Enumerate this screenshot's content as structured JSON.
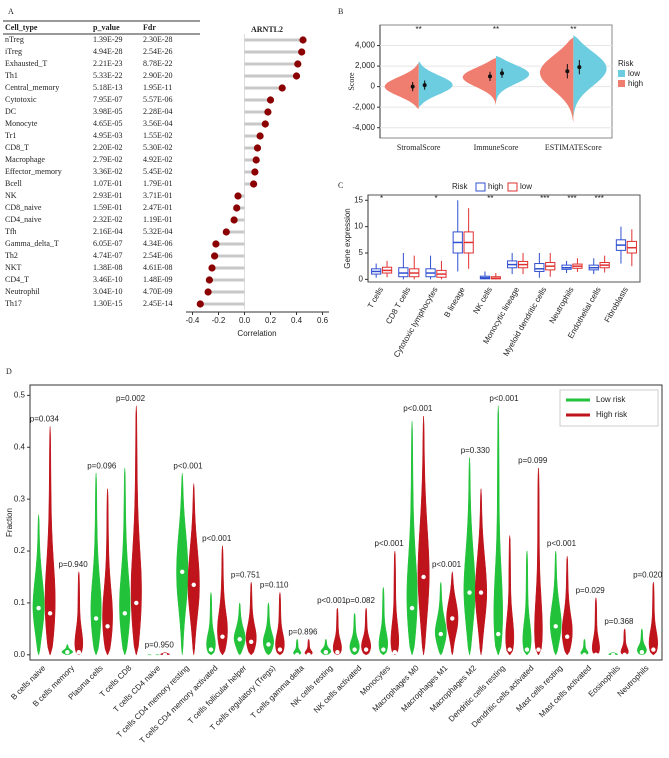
{
  "chart_data": [
    {
      "type": "lollipop",
      "label": "A",
      "title": "ARNTL2",
      "xlabel": "Correlation",
      "color": "#8b0000",
      "categories": [
        "nTreg",
        "iTreg",
        "Exhausted_T",
        "Th1",
        "Central_memory",
        "Cytotoxic",
        "DC",
        "Monocyte",
        "Tr1",
        "CD8_T",
        "Macrophage",
        "Effector_memory",
        "Bcell",
        "NK",
        "CD8_naive",
        "CD4_naive",
        "Tfh",
        "Gamma_delta_T",
        "Th2",
        "NKT",
        "CD4_T",
        "Neutrophil",
        "Th17"
      ],
      "values": [
        0.45,
        0.44,
        0.41,
        0.4,
        0.29,
        0.2,
        0.18,
        0.16,
        0.12,
        0.1,
        0.09,
        0.08,
        0.07,
        -0.05,
        -0.06,
        -0.08,
        -0.14,
        -0.22,
        -0.23,
        -0.25,
        -0.27,
        -0.28,
        -0.34
      ],
      "table": {
        "columns": [
          "Cell_type",
          "p_value",
          "Fdr"
        ],
        "rows": [
          [
            "1.39E-29",
            "2.30E-28"
          ],
          [
            "4.94E-28",
            "2.54E-26"
          ],
          [
            "2.21E-23",
            "8.78E-22"
          ],
          [
            "5.33E-22",
            "2.90E-20"
          ],
          [
            "5.18E-13",
            "1.95E-11"
          ],
          [
            "7.95E-07",
            "5.57E-06"
          ],
          [
            "3.98E-05",
            "2.28E-04"
          ],
          [
            "4.65E-05",
            "3.56E-04"
          ],
          [
            "4.95E-03",
            "1.55E-02"
          ],
          [
            "2.20E-02",
            "5.30E-02"
          ],
          [
            "2.79E-02",
            "4.92E-02"
          ],
          [
            "3.36E-02",
            "5.45E-02"
          ],
          [
            "1.07E-01",
            "1.79E-01"
          ],
          [
            "2.93E-01",
            "3.71E-01"
          ],
          [
            "1.59E-01",
            "2.47E-01"
          ],
          [
            "2.32E-02",
            "1.19E-01"
          ],
          [
            "2.16E-04",
            "5.32E-04"
          ],
          [
            "6.05E-07",
            "4.34E-06"
          ],
          [
            "4.74E-07",
            "2.54E-06"
          ],
          [
            "1.38E-08",
            "4.61E-08"
          ],
          [
            "3.46E-10",
            "1.48E-09"
          ],
          [
            "3.04E-10",
            "4.70E-09"
          ],
          [
            "1.30E-15",
            "2.45E-14"
          ]
        ]
      },
      "xlim": [
        -0.45,
        0.65
      ],
      "xticks": [
        -0.4,
        -0.2,
        {
          "value": 0,
          "label": "0.0"
        },
        0.2,
        0.4,
        0.6
      ]
    },
    {
      "type": "split_violin",
      "label": "B",
      "ylabel": "Score",
      "legend_title": "Risk",
      "categories": [
        "StromalScore",
        "ImmuneScore",
        "ESTIMATEScore"
      ],
      "annotations": [
        "**",
        "**",
        "**"
      ],
      "series": [
        {
          "name": "low",
          "color": "#6ccde0",
          "values": [
            150,
            1300,
            1900
          ],
          "errors": [
            450,
            450,
            700
          ],
          "min": [
            -2000,
            -1500,
            -3000
          ],
          "max": [
            2500,
            3000,
            5000
          ]
        },
        {
          "name": "high",
          "color": "#f07e70",
          "values": [
            0,
            1000,
            1500
          ],
          "errors": [
            450,
            450,
            700
          ],
          "min": [
            -2200,
            -1800,
            -3500
          ],
          "max": [
            2300,
            2800,
            4800
          ]
        }
      ],
      "ylim": [
        -5000,
        6000
      ],
      "yticks": [
        {
          "value": -4000,
          "label": "-4,000"
        },
        {
          "value": -2000,
          "label": "-2,000"
        },
        0,
        {
          "value": 2000,
          "label": "2,000"
        },
        {
          "value": 4000,
          "label": "4,000"
        }
      ],
      "grid": true
    },
    {
      "type": "box",
      "label": "C",
      "ylabel": "Gene expression",
      "legend_title": "Risk",
      "categories": [
        "T cells",
        "CD8 T cells",
        "Cytotoxic lymphocytes",
        "B lineage",
        "NK cells",
        "Monocytic lineage",
        "Myeloid dendritic cells",
        "Neutrophils",
        "Endothelial cells",
        "Fibroblasts"
      ],
      "annotations": [
        "*",
        null,
        "*",
        null,
        "**",
        null,
        "***",
        "***",
        "***",
        null
      ],
      "series": [
        {
          "name": "high",
          "color": "#3050d0",
          "values": [
            1.5,
            1.2,
            1.2,
            7,
            0.3,
            2.8,
            2.0,
            2.2,
            2.2,
            6.5
          ],
          "q1": [
            1.0,
            0.5,
            0.5,
            5,
            0.1,
            2.2,
            1.5,
            1.9,
            1.8,
            5.5
          ],
          "q3": [
            2.0,
            2.2,
            2.0,
            9,
            0.6,
            3.5,
            3.0,
            2.7,
            2.7,
            7.5
          ],
          "min": [
            0.3,
            0,
            0,
            1.5,
            0,
            1,
            0.3,
            1.2,
            1,
            3
          ],
          "max": [
            3,
            5,
            4.5,
            15,
            1.5,
            5,
            5,
            3.5,
            4,
            10
          ]
        },
        {
          "name": "low",
          "color": "#e03131",
          "values": [
            1.7,
            1.2,
            1.0,
            7,
            0.2,
            2.8,
            2.5,
            2.5,
            2.7,
            6
          ],
          "q1": [
            1.2,
            0.5,
            0.4,
            5,
            0.1,
            2.2,
            1.8,
            2.1,
            2.2,
            5
          ],
          "q3": [
            2.3,
            2.0,
            1.7,
            9,
            0.5,
            3.4,
            3.2,
            2.9,
            3.2,
            7.2
          ],
          "min": [
            0.4,
            0,
            0,
            2,
            0,
            1,
            0.5,
            1.4,
            1.3,
            2.5
          ],
          "max": [
            3.5,
            4.5,
            3.5,
            13.5,
            1.2,
            5,
            5,
            4,
            4.5,
            9.5
          ]
        }
      ],
      "ylim": [
        -0.5,
        16
      ],
      "yticks": [
        0,
        5,
        10,
        15
      ]
    },
    {
      "type": "violin",
      "label": "D",
      "ylabel": "Fraction",
      "categories": [
        "B cells naive",
        "B cells memory",
        "Plasma cells",
        "T cells CD8",
        "T cells CD4 naive",
        "T cells CD4 memory resting",
        "T cells CD4 memory activated",
        "T cells follicular helper",
        "T cells regulatory (Tregs)",
        "T cells gamma delta",
        "NK cells resting",
        "NK cells activated",
        "Monocytes",
        "Macrophages M0",
        "Macrophages M1",
        "Macrophages M2",
        "Dendritic cells resting",
        "Dendritic cells activated",
        "Mast cells resting",
        "Mast cells activated",
        "Eosinophils",
        "Neutrophils"
      ],
      "annotations": [
        "p=0.034",
        "p=0.940",
        "p=0.096",
        "p=0.002",
        "p=0.950",
        "p<0.001",
        "p<0.001",
        "p=0.751",
        "p=0.110",
        "p=0.896",
        "p<0.001",
        "p=0.082",
        "p<0.001",
        "p<0.001",
        "p<0.001",
        "p=0.330",
        "p<0.001",
        "p=0.099",
        "p<0.001",
        "p=0.029",
        "p=0.368",
        "p=0.020"
      ],
      "series": [
        {
          "name": "Low risk",
          "color": "#22c33a",
          "values": [
            0.09,
            0.005,
            0.07,
            0.08,
            0,
            0.16,
            0.01,
            0.03,
            0.02,
            0,
            0.005,
            0.01,
            0.01,
            0.09,
            0.04,
            0.12,
            0.04,
            0.01,
            0.055,
            0,
            0,
            0.005
          ],
          "max": [
            0.27,
            0.02,
            0.35,
            0.36,
            0,
            0.35,
            0.12,
            0.1,
            0.1,
            0.03,
            0.03,
            0.08,
            0.13,
            0.45,
            0.14,
            0.38,
            0.48,
            0.2,
            0.2,
            0.03,
            0.005,
            0.05
          ]
        },
        {
          "name": "High risk",
          "color": "#c0141c",
          "values": [
            0.08,
            0.005,
            0.055,
            0.1,
            0,
            0.135,
            0.035,
            0.025,
            0.01,
            0,
            0.005,
            0.01,
            0.005,
            0.15,
            0.07,
            0.12,
            0.01,
            0.01,
            0.035,
            0,
            0,
            0.01
          ],
          "max": [
            0.44,
            0.16,
            0.32,
            0.48,
            0.005,
            0.33,
            0.21,
            0.14,
            0.12,
            0.03,
            0.09,
            0.09,
            0.2,
            0.46,
            0.16,
            0.32,
            0.23,
            0.36,
            0.19,
            0.11,
            0.05,
            0.14
          ]
        }
      ],
      "ylim": [
        -0.01,
        0.52
      ],
      "yticks": [
        {
          "value": 0,
          "label": "0.0"
        },
        0.1,
        0.2,
        0.3,
        0.4,
        0.5
      ]
    }
  ]
}
